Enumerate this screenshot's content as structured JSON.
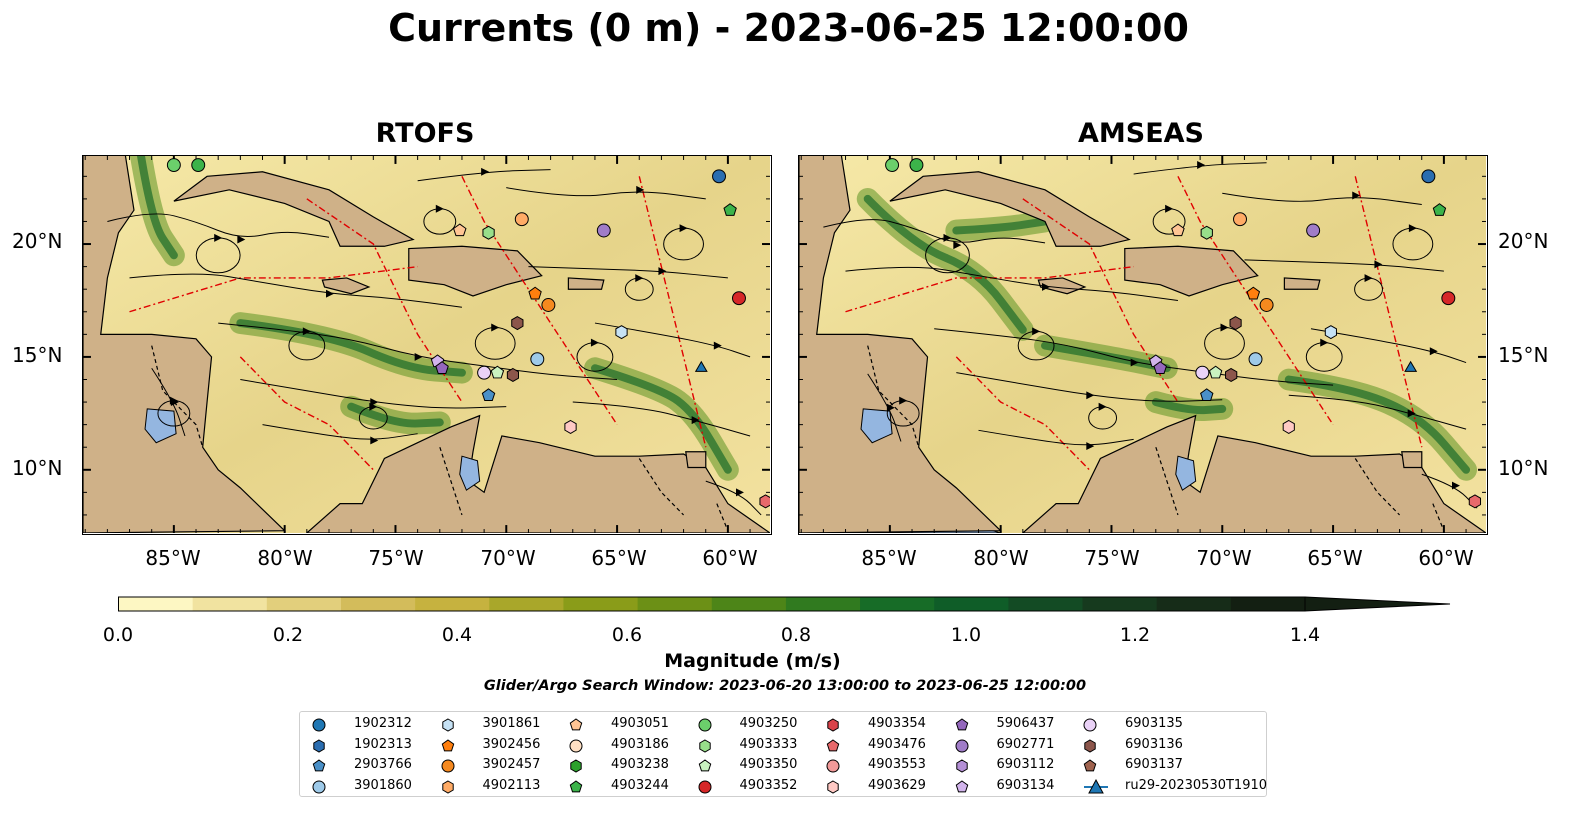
{
  "title": "Currents (0 m) - 2023-06-25 12:00:00",
  "panels": [
    {
      "title": "RTOFS"
    },
    {
      "title": "AMSEAS"
    }
  ],
  "lat_labels": [
    "20°N",
    "15°N",
    "10°N"
  ],
  "lon_labels": [
    "85°W",
    "80°W",
    "75°W",
    "70°W",
    "65°W",
    "60°W"
  ],
  "colorbar": {
    "label": "Magnitude (m/s)",
    "ticks": [
      "0.0",
      "0.2",
      "0.4",
      "0.6",
      "0.8",
      "1.0",
      "1.2",
      "1.4"
    ],
    "colors": [
      "#fdf7c3",
      "#f1e3a0",
      "#e2cf7c",
      "#d3bc5b",
      "#c6b23f",
      "#a9a72a",
      "#8a9c19",
      "#6c9016",
      "#4d8518",
      "#307a1f",
      "#176c27",
      "#0f5d28",
      "#134b24",
      "#163a1e",
      "#162c18",
      "#131f12"
    ]
  },
  "search_window": "Glider/Argo Search Window: 2023-06-20 13:00:00 to 2023-06-25 12:00:00",
  "legend": [
    {
      "label": "1902312",
      "marker": "circle",
      "color": "#1f77b4"
    },
    {
      "label": "1902313",
      "marker": "hexagon",
      "color": "#2a6db0"
    },
    {
      "label": "2903766",
      "marker": "pentagon",
      "color": "#4a90c8"
    },
    {
      "label": "3901860",
      "marker": "circle",
      "color": "#9ecae9"
    },
    {
      "label": "3901861",
      "marker": "hexagon",
      "color": "#c6e2f5"
    },
    {
      "label": "3902456",
      "marker": "pentagon",
      "color": "#ff7f0e"
    },
    {
      "label": "3902457",
      "marker": "circle",
      "color": "#f5891f"
    },
    {
      "label": "4902113",
      "marker": "hexagon",
      "color": "#ffab66"
    },
    {
      "label": "4903051",
      "marker": "pentagon",
      "color": "#ffc594"
    },
    {
      "label": "4903186",
      "marker": "circle",
      "color": "#ffe0c4"
    },
    {
      "label": "4903238",
      "marker": "hexagon",
      "color": "#2ca02c"
    },
    {
      "label": "4903244",
      "marker": "pentagon",
      "color": "#3cb34a"
    },
    {
      "label": "4903250",
      "marker": "circle",
      "color": "#6bcf6b"
    },
    {
      "label": "4903333",
      "marker": "hexagon",
      "color": "#98df8a"
    },
    {
      "label": "4903350",
      "marker": "pentagon",
      "color": "#c9f2c0"
    },
    {
      "label": "4903352",
      "marker": "circle",
      "color": "#d62728"
    },
    {
      "label": "4903354",
      "marker": "hexagon",
      "color": "#d9434a"
    },
    {
      "label": "4903476",
      "marker": "pentagon",
      "color": "#e8696b"
    },
    {
      "label": "4903553",
      "marker": "circle",
      "color": "#f29a99"
    },
    {
      "label": "4903629",
      "marker": "hexagon",
      "color": "#ffc9c4"
    },
    {
      "label": "5906437",
      "marker": "pentagon",
      "color": "#9467bd"
    },
    {
      "label": "6902771",
      "marker": "circle",
      "color": "#a07cc8"
    },
    {
      "label": "6903112",
      "marker": "hexagon",
      "color": "#b48fd6"
    },
    {
      "label": "6903134",
      "marker": "pentagon",
      "color": "#d2b4ec"
    },
    {
      "label": "6903135",
      "marker": "circle",
      "color": "#ead2f7"
    },
    {
      "label": "6903136",
      "marker": "hexagon",
      "color": "#8c564b"
    },
    {
      "label": "6903137",
      "marker": "pentagon",
      "color": "#a0634f"
    },
    {
      "label": "ru29-20230530T1910",
      "marker": "triangle-line",
      "color": "#1f77b4"
    }
  ],
  "floats": [
    {
      "lon": -85.0,
      "lat": 23.5,
      "marker": "circle",
      "color": "#6bcf6b"
    },
    {
      "lon": -83.9,
      "lat": 23.5,
      "marker": "circle",
      "color": "#3cb34a"
    },
    {
      "lon": -60.4,
      "lat": 23.0,
      "marker": "circle",
      "color": "#2a6db0"
    },
    {
      "lon": -59.9,
      "lat": 21.5,
      "marker": "pentagon",
      "color": "#3cb34a"
    },
    {
      "lon": -72.1,
      "lat": 20.6,
      "marker": "pentagon",
      "color": "#ffc594"
    },
    {
      "lon": -70.8,
      "lat": 20.5,
      "marker": "hexagon",
      "color": "#98df8a"
    },
    {
      "lon": -69.3,
      "lat": 21.1,
      "marker": "circle",
      "color": "#ffab66"
    },
    {
      "lon": -65.6,
      "lat": 20.6,
      "marker": "circle",
      "color": "#a07cc8"
    },
    {
      "lon": -68.7,
      "lat": 17.8,
      "marker": "pentagon",
      "color": "#ff7f0e"
    },
    {
      "lon": -68.1,
      "lat": 17.3,
      "marker": "circle",
      "color": "#f5891f"
    },
    {
      "lon": -59.5,
      "lat": 17.6,
      "marker": "circle",
      "color": "#d62728"
    },
    {
      "lon": -69.5,
      "lat": 16.5,
      "marker": "hexagon",
      "color": "#8c564b"
    },
    {
      "lon": -64.8,
      "lat": 16.1,
      "marker": "hexagon",
      "color": "#c6e2f5"
    },
    {
      "lon": -73.1,
      "lat": 14.8,
      "marker": "pentagon",
      "color": "#d2b4ec"
    },
    {
      "lon": -72.9,
      "lat": 14.5,
      "marker": "pentagon",
      "color": "#9467bd"
    },
    {
      "lon": -71.0,
      "lat": 14.3,
      "marker": "circle",
      "color": "#ead2f7"
    },
    {
      "lon": -70.4,
      "lat": 14.3,
      "marker": "pentagon",
      "color": "#c9f2c0"
    },
    {
      "lon": -69.7,
      "lat": 14.2,
      "marker": "hexagon",
      "color": "#8c564b"
    },
    {
      "lon": -68.6,
      "lat": 14.9,
      "marker": "circle",
      "color": "#9ecae9"
    },
    {
      "lon": -70.8,
      "lat": 13.3,
      "marker": "pentagon",
      "color": "#4a90c8"
    },
    {
      "lon": -67.1,
      "lat": 11.9,
      "marker": "hexagon",
      "color": "#ffc9c4"
    },
    {
      "lon": -61.2,
      "lat": 14.5,
      "marker": "triangle",
      "color": "#1f77b4"
    },
    {
      "lon": -58.3,
      "lat": 8.6,
      "marker": "hexagon",
      "color": "#e8696b"
    }
  ]
}
